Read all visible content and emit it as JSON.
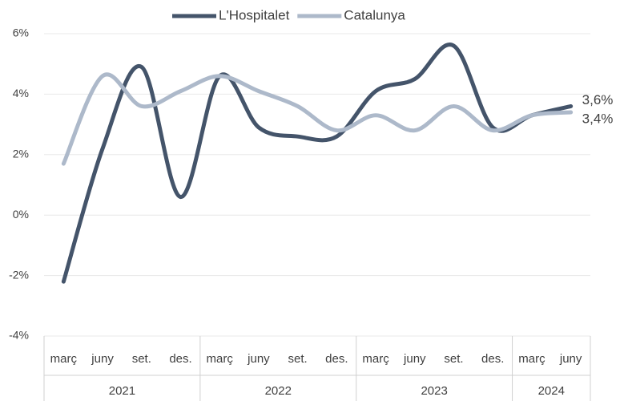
{
  "chart_data": {
    "type": "line",
    "categories": [
      "març",
      "juny",
      "set.",
      "des.",
      "març",
      "juny",
      "set.",
      "des.",
      "març",
      "juny",
      "set.",
      "des.",
      "març",
      "juny"
    ],
    "category_groups": [
      {
        "name": "2021",
        "size": 4
      },
      {
        "name": "2022",
        "size": 4
      },
      {
        "name": "2023",
        "size": 4
      },
      {
        "name": "2024",
        "size": 2
      }
    ],
    "series": [
      {
        "name": "L'Hospitalet",
        "color": "#44546a",
        "values": [
          -2.2,
          2.2,
          4.9,
          0.6,
          4.6,
          2.9,
          2.6,
          2.6,
          4.1,
          4.5,
          5.6,
          2.9,
          3.3,
          3.6
        ],
        "value_labels": {
          "13": "3,6%"
        }
      },
      {
        "name": "Catalunya",
        "color": "#adb9ca",
        "values": [
          1.7,
          4.6,
          3.6,
          4.1,
          4.6,
          4.1,
          3.6,
          2.8,
          3.3,
          2.8,
          3.6,
          2.8,
          3.3,
          3.4
        ],
        "value_labels": {
          "13": "3,4%"
        }
      }
    ],
    "ylim": [
      -4,
      6
    ],
    "yticks": [
      {
        "value": -4,
        "label": "-4%"
      },
      {
        "value": -2,
        "label": "-2%"
      },
      {
        "value": 0,
        "label": "0%"
      },
      {
        "value": 2,
        "label": "2%"
      },
      {
        "value": 4,
        "label": "4%"
      },
      {
        "value": 6,
        "label": "6%"
      }
    ],
    "grid": true,
    "smooth": true,
    "legend": "top"
  }
}
